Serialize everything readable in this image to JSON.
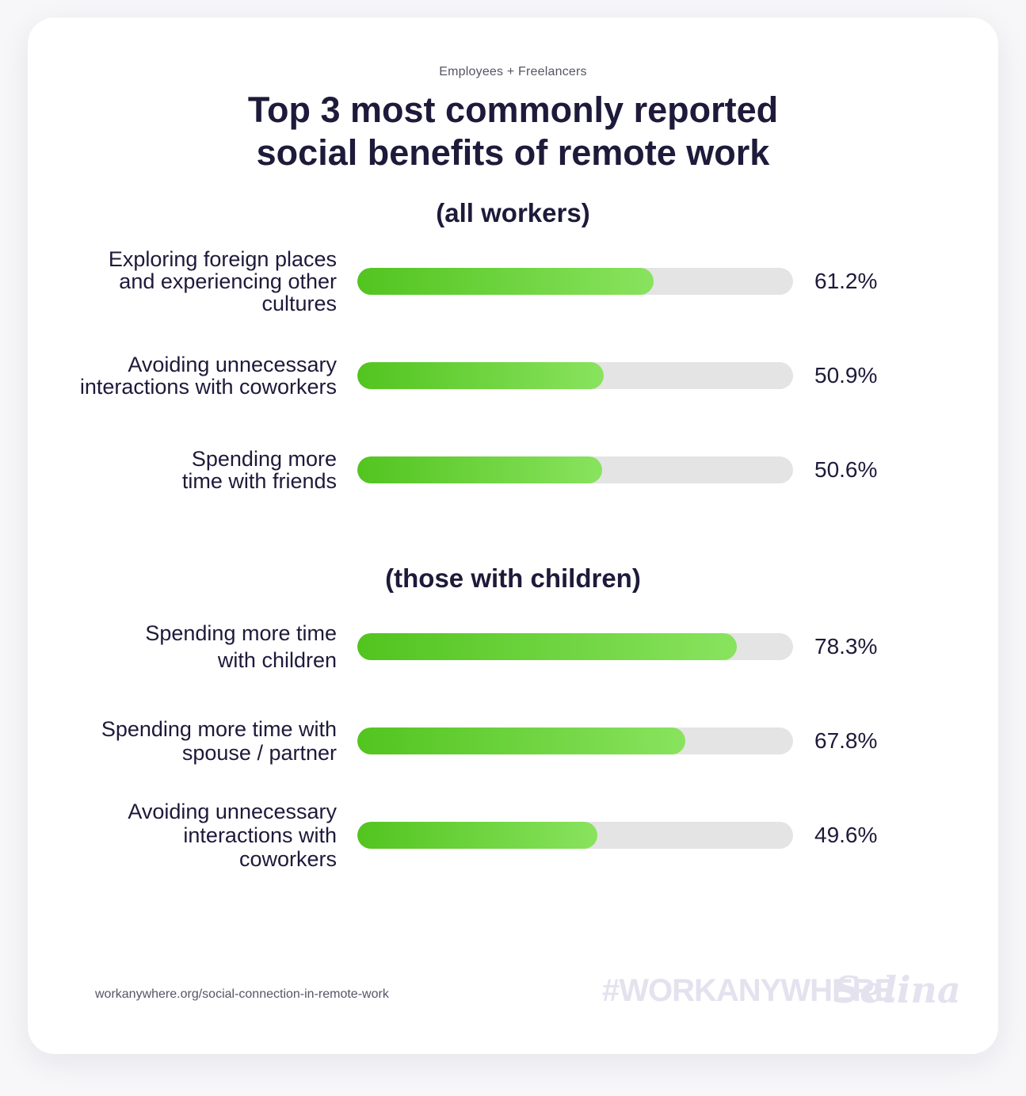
{
  "header": {
    "label": "Employees + Freelancers",
    "title_line1": "Top 3 most commonly reported",
    "title_line2": "social benefits of remote work"
  },
  "chart_data": [
    {
      "type": "bar",
      "orientation": "horizontal",
      "title": "(all workers)",
      "categories": [
        "Exploring foreign places and experiencing other cultures",
        "Avoiding unnecessary interactions with coworkers",
        "Spending more time with friends"
      ],
      "values": [
        61.2,
        50.9,
        50.6
      ],
      "value_labels": [
        "61.2%",
        "50.9%",
        "50.6%"
      ],
      "xlim": [
        0,
        100
      ],
      "unit": "%"
    },
    {
      "type": "bar",
      "orientation": "horizontal",
      "title": "(those with children)",
      "categories": [
        "Spending more time with children",
        "Spending more time with spouse / partner",
        "Avoiding unnecessary interactions with coworkers"
      ],
      "values": [
        78.3,
        67.8,
        49.6
      ],
      "value_labels": [
        "78.3%",
        "67.8%",
        "49.6%"
      ],
      "xlim": [
        0,
        100
      ],
      "unit": "%"
    }
  ],
  "footer": {
    "source": "workanywhere.org/social-connection-in-remote-work",
    "hashtag": "#WORKANYWHERE",
    "brand": "Selina"
  },
  "colors": {
    "bar_start": "#52c41f",
    "bar_end": "#89e35e",
    "track": "#e4e4e4",
    "text": "#1d1a3a"
  }
}
